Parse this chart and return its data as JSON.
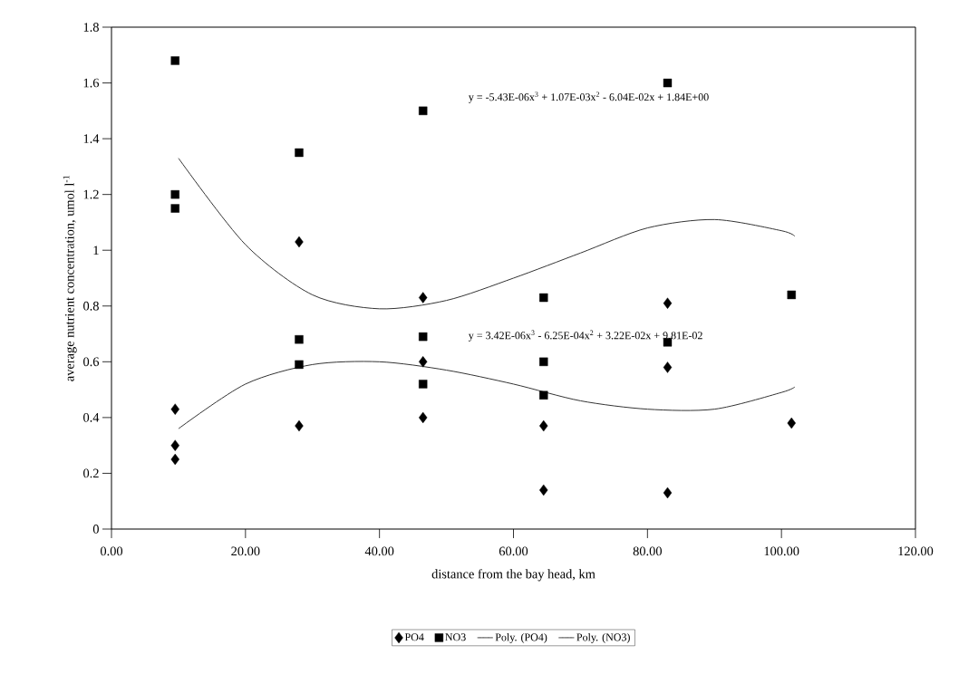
{
  "chart_data": {
    "type": "scatter",
    "xlabel": "distance from the bay head, km",
    "ylabel": "average nutrient concentration, umol l$^{-1}$",
    "xlim": [
      0,
      120
    ],
    "ylim": [
      0,
      1.8
    ],
    "xticks": [
      {
        "value": 0,
        "label": "0.00"
      },
      {
        "value": 20,
        "label": "20.00"
      },
      {
        "value": 40,
        "label": "40.00"
      },
      {
        "value": 60,
        "label": "60.00"
      },
      {
        "value": 80,
        "label": "80.00"
      },
      {
        "value": 100,
        "label": "100.00"
      },
      {
        "value": 120,
        "label": "120.00"
      }
    ],
    "yticks": [
      0,
      0.2,
      0.4,
      0.6,
      0.8,
      1,
      1.2,
      1.4,
      1.6,
      1.8
    ],
    "grid": false,
    "legend": "bottom",
    "series": [
      {
        "name": "PO4",
        "marker": "diamond",
        "color": "#000000",
        "x": [
          9.5,
          9.5,
          9.5,
          28,
          28,
          46.5,
          46.5,
          46.5,
          64.5,
          64.5,
          83,
          83,
          83,
          101.5
        ],
        "values": [
          0.43,
          0.3,
          0.25,
          1.03,
          0.37,
          0.83,
          0.6,
          0.4,
          0.37,
          0.14,
          0.81,
          0.58,
          0.13,
          0.38
        ]
      },
      {
        "name": "NO3",
        "marker": "square",
        "color": "#000000",
        "x": [
          9.5,
          9.5,
          9.5,
          28,
          28,
          28,
          46.5,
          46.5,
          46.5,
          64.5,
          64.5,
          64.5,
          83,
          83,
          101.5
        ],
        "values": [
          1.68,
          1.2,
          1.15,
          1.35,
          0.68,
          0.59,
          1.5,
          0.69,
          0.52,
          0.83,
          0.6,
          0.48,
          1.6,
          0.67,
          0.84
        ]
      },
      {
        "name": "Poly. (PO4)",
        "type": "line",
        "line_style": "solid",
        "color": "#333333",
        "x": [
          10,
          20,
          30,
          40,
          50,
          60,
          70,
          80,
          90,
          100,
          102
        ],
        "values": [
          0.36,
          0.52,
          0.59,
          0.6,
          0.57,
          0.52,
          0.46,
          0.43,
          0.43,
          0.49,
          0.51
        ]
      },
      {
        "name": "Poly. (NO3)",
        "type": "line",
        "line_style": "solid",
        "color": "#333333",
        "x": [
          10,
          20,
          30,
          40,
          50,
          60,
          70,
          80,
          90,
          100,
          102
        ],
        "values": [
          1.33,
          1.02,
          0.84,
          0.79,
          0.82,
          0.9,
          0.99,
          1.08,
          1.11,
          1.07,
          1.05
        ]
      }
    ],
    "annotations": [
      "y = -5.43E-06x$^{3}$ + 1.07E-03x$^{2}$ - 6.04E-02x + 1.84E+00",
      "y = 3.42E-06x$^{3}$ - 6.25E-04x$^{2}$ + 3.22E-02x + 9.81E-02"
    ]
  }
}
